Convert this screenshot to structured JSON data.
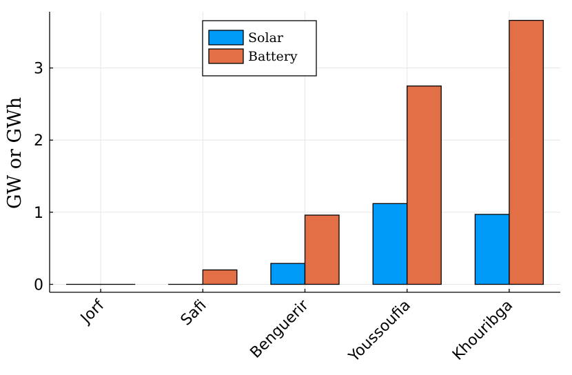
{
  "chart_data": {
    "type": "bar",
    "title": "",
    "xlabel": "",
    "ylabel": "GW or GWh",
    "categories": [
      "Jorf",
      "Safi",
      "Benguerir",
      "Youssoufia",
      "Khouribga"
    ],
    "series": [
      {
        "name": "Solar",
        "values": [
          0.0,
          0.0,
          0.29,
          1.12,
          0.97
        ]
      },
      {
        "name": "Battery",
        "values": [
          0.0,
          0.2,
          0.96,
          2.75,
          3.66
        ]
      }
    ],
    "yticks": [
      0,
      1,
      2,
      3
    ],
    "ylim": [
      -0.11,
      3.78
    ],
    "grid": true,
    "legend_position": "top-center"
  },
  "colors": {
    "Solar": "#009af9",
    "Battery": "#e26f46"
  }
}
